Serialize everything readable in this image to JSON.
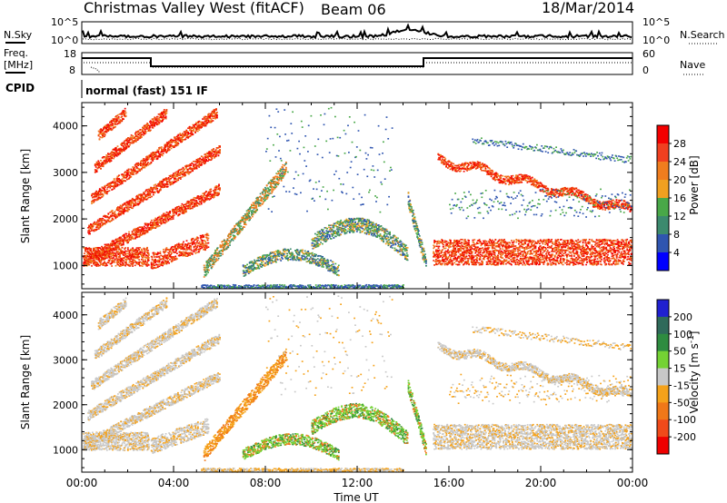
{
  "header": {
    "station": "Christmas Valley West (fitACF)",
    "beam": "Beam 06",
    "date": "18/Mar/2014"
  },
  "panels": {
    "nsky": {
      "label": "N.Sky",
      "left_ticks": [
        "10^5",
        "10^0"
      ],
      "right_ticks": [
        "10^5",
        "10^0"
      ],
      "right_label": "N.Search"
    },
    "freq": {
      "label_line1": "Freq.",
      "label_line2": "[MHz]",
      "left_ticks": [
        "18",
        "8"
      ],
      "right_ticks": [
        "60",
        "0"
      ],
      "right_label": "Nave"
    },
    "cpid": {
      "label": "CPID",
      "value": "normal (fast) 151 IF"
    }
  },
  "chart_data": [
    {
      "type": "heatmap",
      "title": "",
      "xlabel": "Time UT",
      "ylabel": "Slant Range [km]",
      "x_ticks": [
        "00:00",
        "04:00",
        "08:00",
        "12:00",
        "16:00",
        "20:00",
        "00:00"
      ],
      "y_ticks": [
        1000,
        2000,
        3000,
        4000
      ],
      "ylim": [
        500,
        4500
      ],
      "colorbar": {
        "label": "Power [dB]",
        "ticks": [
          4,
          8,
          12,
          16,
          20,
          24,
          28
        ],
        "range": [
          0,
          32
        ],
        "colors": [
          "#0000ff",
          "#2f55b0",
          "#3c8a6e",
          "#49a848",
          "#f0a020",
          "#f07d1e",
          "#f04020",
          "#f40000"
        ]
      }
    },
    {
      "type": "heatmap",
      "title": "",
      "xlabel": "Time UT",
      "ylabel": "Slant Range [km]",
      "x_ticks": [
        "00:00",
        "04:00",
        "08:00",
        "12:00",
        "16:00",
        "20:00",
        "00:00"
      ],
      "y_ticks": [
        1000,
        2000,
        3000,
        4000
      ],
      "ylim": [
        500,
        4500
      ],
      "colorbar": {
        "label": "Velocity [m s^-1]",
        "ticks": [
          200,
          100,
          50,
          15,
          -15,
          -50,
          -100,
          -200
        ],
        "colors": [
          "#2020d0",
          "#2f6a5a",
          "#2e8c40",
          "#74d234",
          "#c8c8c8",
          "#f5a21a",
          "#f07818",
          "#f04a1a",
          "#ee0000"
        ]
      }
    }
  ]
}
